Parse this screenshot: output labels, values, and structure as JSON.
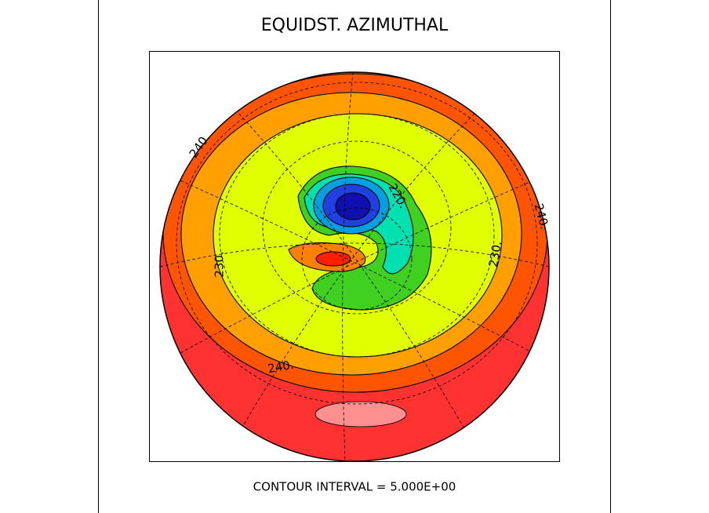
{
  "header": {
    "title": "EQUIDST. AZIMUTHAL"
  },
  "map": {
    "contour_labels": [
      "240.",
      "240.",
      "230.",
      "230.",
      "220.",
      "240."
    ]
  },
  "footer": {
    "text": "CONTOUR INTERVAL = 5.000E+00"
  }
}
